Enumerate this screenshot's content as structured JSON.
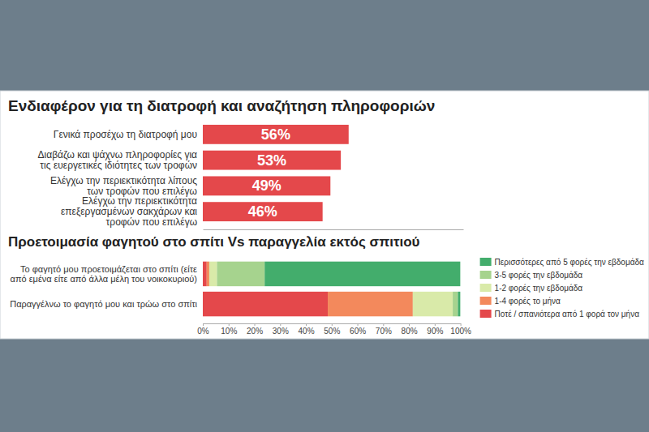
{
  "chart_data": [
    {
      "type": "bar",
      "orientation": "horizontal",
      "title": "Ενδιαφέρον για τη διατροφή και αναζήτηση πληροφοριών",
      "categories": [
        "Γενικά προσέχω τη διατροφή μου",
        "Διαβάζω και ψάχνω πληροφορίες για τις ευεργετικές ιδιότητες των τροφών",
        "Ελέγχω την περιεκτικότητα λίπους των τροφών που επιλέγω",
        "Ελέγχω την περιεκτικότητα επεξεργασμένων σακχάρων και τροφών που επιλέγω"
      ],
      "values": [
        56,
        53,
        49,
        46
      ],
      "value_labels": [
        "56%",
        "53%",
        "49%",
        "46%"
      ],
      "color": "#e4484b",
      "xlim": [
        0,
        100
      ],
      "data_labels": true,
      "tick_labels": "y"
    },
    {
      "type": "bar",
      "orientation": "horizontal",
      "stacked": true,
      "title": "Προετοιμασία φαγητού στο σπίτι Vs παραγγελία εκτός σπιτιού",
      "categories": [
        "Το φαγητό μου προετοιμάζεται στο σπίτι (είτε από εμένα είτε από άλλα μέλη του νοικοκυριού)",
        "Παραγγέλνω το φαγητό μου και τρώω στο σπίτι"
      ],
      "series": [
        {
          "name": "Περισσότερες από 5 φορές την εβδομάδα",
          "color": "#43ad6c",
          "values": [
            76,
            1
          ]
        },
        {
          "name": "3-5 φορές την εβδομάδα",
          "color": "#a6d38e",
          "values": [
            18.5,
            2
          ]
        },
        {
          "name": "1-2 φορές την εβδομάδα",
          "color": "#d9eaa9",
          "values": [
            3,
            15.5
          ]
        },
        {
          "name": "1-4 φορές το μήνα",
          "color": "#f3895c",
          "values": [
            1,
            33
          ]
        },
        {
          "name": "Ποτέ / σπανιότερα από 1 φορά τον μήνα",
          "color": "#e4484b",
          "values": [
            1.5,
            48.5
          ]
        }
      ],
      "xlim": [
        0,
        100
      ],
      "xticks": [
        {
          "value": 0,
          "label": "0%"
        },
        {
          "value": 10,
          "label": "10%"
        },
        {
          "value": 20,
          "label": "20%"
        },
        {
          "value": 30,
          "label": "30%"
        },
        {
          "value": 40,
          "label": "40%"
        },
        {
          "value": 50,
          "label": "50%"
        },
        {
          "value": 60,
          "label": "60%"
        },
        {
          "value": 70,
          "label": "70%"
        },
        {
          "value": 80,
          "label": "80%"
        },
        {
          "value": 90,
          "label": "90%"
        },
        {
          "value": 100,
          "label": "100%"
        }
      ],
      "legend": "right",
      "tick_labels": true
    }
  ]
}
